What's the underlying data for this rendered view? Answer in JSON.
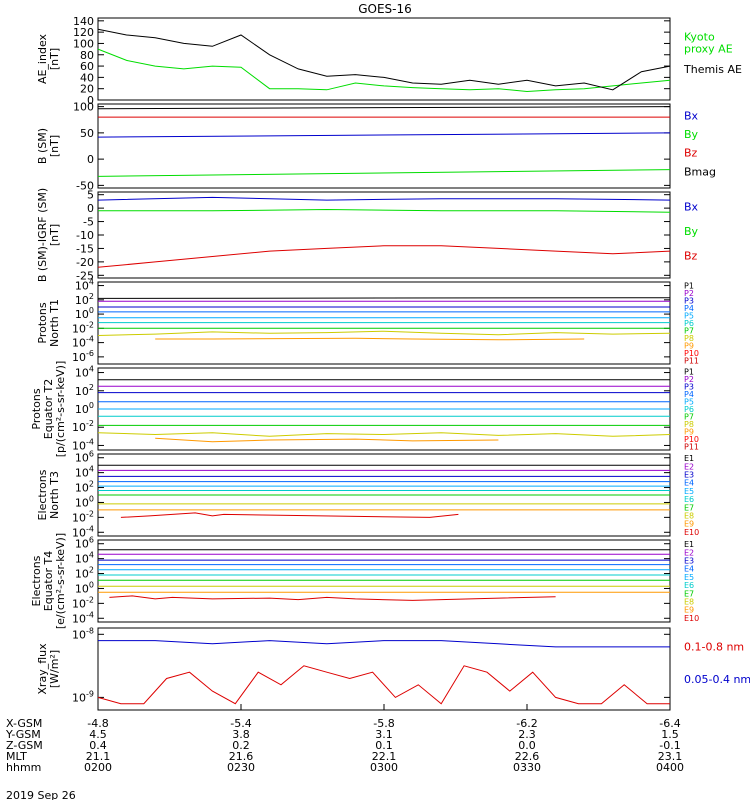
{
  "title": "GOES-16",
  "date": "2019 Sep 26",
  "chart_data": [
    {
      "type": "line",
      "ylabel": "AE_index\n[nT]",
      "yticks": [
        "140",
        "120",
        "100",
        "80",
        "60",
        "40",
        "20",
        "0"
      ],
      "ylim": [
        0,
        145
      ],
      "series": [
        {
          "name": "Kyoto\nproxy AE",
          "color": "#00dd00",
          "x": [
            0,
            0.05,
            0.1,
            0.15,
            0.2,
            0.25,
            0.3,
            0.35,
            0.4,
            0.45,
            0.5,
            0.55,
            0.6,
            0.65,
            0.7,
            0.75,
            0.8,
            0.85,
            0.9,
            0.95,
            1
          ],
          "values": [
            90,
            70,
            60,
            55,
            60,
            58,
            20,
            20,
            18,
            30,
            25,
            22,
            20,
            18,
            20,
            15,
            18,
            20,
            25,
            30,
            35
          ]
        },
        {
          "name": "Themis AE",
          "color": "#000000",
          "x": [
            0,
            0.05,
            0.1,
            0.15,
            0.2,
            0.25,
            0.3,
            0.35,
            0.4,
            0.45,
            0.5,
            0.55,
            0.6,
            0.65,
            0.7,
            0.75,
            0.8,
            0.85,
            0.9,
            0.95,
            1
          ],
          "values": [
            125,
            115,
            110,
            100,
            95,
            115,
            80,
            55,
            42,
            45,
            40,
            30,
            28,
            35,
            28,
            35,
            25,
            30,
            18,
            50,
            60
          ]
        }
      ]
    },
    {
      "type": "line",
      "ylabel": "B (SM)\n[nT]",
      "yticks": [
        "100",
        "50",
        "0",
        "-50"
      ],
      "ylim": [
        -55,
        105
      ],
      "series": [
        {
          "name": "Bx",
          "color": "#0000cc",
          "x": [
            0,
            1
          ],
          "values": [
            42,
            50
          ]
        },
        {
          "name": "By",
          "color": "#00dd00",
          "x": [
            0,
            1
          ],
          "values": [
            -33,
            -20
          ]
        },
        {
          "name": "Bz",
          "color": "#dd0000",
          "x": [
            0,
            1
          ],
          "values": [
            80,
            80
          ]
        },
        {
          "name": "Bmag",
          "color": "#000000",
          "x": [
            0,
            1
          ],
          "values": [
            96,
            100
          ]
        }
      ]
    },
    {
      "type": "line",
      "ylabel": "B (SM)-IGRF (SM)\n[nT]",
      "yticks": [
        "5",
        "0",
        "-5",
        "-10",
        "-15",
        "-20",
        "-25"
      ],
      "ylim": [
        -26,
        6
      ],
      "series": [
        {
          "name": "Bx",
          "color": "#0000cc",
          "x": [
            0,
            0.2,
            0.4,
            0.6,
            0.8,
            1
          ],
          "values": [
            3,
            4,
            3,
            3.5,
            3.5,
            3
          ]
        },
        {
          "name": "By",
          "color": "#00dd00",
          "x": [
            0,
            0.2,
            0.4,
            0.6,
            0.8,
            1
          ],
          "values": [
            -1,
            -1,
            -0.5,
            -1,
            -1,
            -1.5
          ]
        },
        {
          "name": "Bz",
          "color": "#dd0000",
          "x": [
            0,
            0.1,
            0.2,
            0.3,
            0.4,
            0.5,
            0.6,
            0.7,
            0.8,
            0.9,
            1
          ],
          "values": [
            -22,
            -20,
            -18,
            -16,
            -15,
            -14,
            -14,
            -15,
            -16,
            -17,
            -16
          ]
        }
      ]
    },
    {
      "type": "line",
      "ylabel": "Protons\nNorth T1",
      "yticks": [
        "10^4",
        "10^2",
        "10^0",
        "10^-2",
        "10^-4",
        "10^-6"
      ],
      "ylog": true,
      "ylim": [
        -7,
        4.5
      ],
      "series": [
        {
          "name": "P1",
          "color": "#000000",
          "x": [
            0,
            1
          ],
          "values": [
            2.2,
            2.3
          ]
        },
        {
          "name": "P2",
          "color": "#9900cc",
          "x": [
            0,
            1
          ],
          "values": [
            1.8,
            1.8
          ]
        },
        {
          "name": "P3",
          "color": "#0000cc",
          "x": [
            0,
            1
          ],
          "values": [
            1.0,
            1.0
          ]
        },
        {
          "name": "P4",
          "color": "#0066ff",
          "x": [
            0,
            1
          ],
          "values": [
            0.3,
            0.3
          ]
        },
        {
          "name": "P5",
          "color": "#00aaff",
          "x": [
            0,
            1
          ],
          "values": [
            -0.5,
            -0.5
          ]
        },
        {
          "name": "P6",
          "color": "#00cccc",
          "x": [
            0,
            1
          ],
          "values": [
            -1.2,
            -1.2
          ]
        },
        {
          "name": "P7",
          "color": "#00cc00",
          "x": [
            0,
            1
          ],
          "values": [
            -2.0,
            -2.0
          ]
        },
        {
          "name": "P8",
          "color": "#cccc00",
          "x": [
            0,
            0.1,
            0.2,
            0.3,
            0.4,
            0.5,
            0.6,
            0.7,
            0.8,
            0.9,
            1
          ],
          "values": [
            -3,
            -2.8,
            -2.5,
            -2.7,
            -2.6,
            -2.4,
            -2.7,
            -2.9,
            -2.6,
            -2.8,
            -2.7
          ]
        },
        {
          "name": "P9",
          "color": "#ff9900",
          "x": [
            0.1,
            0.2,
            0.45,
            0.55,
            0.7,
            0.85
          ],
          "values": [
            -3.5,
            -3.5,
            -3.4,
            -3.5,
            -3.6,
            -3.5
          ]
        },
        {
          "name": "P10",
          "color": "#ff0000",
          "x": [],
          "values": []
        },
        {
          "name": "P11",
          "color": "#cc0000",
          "x": [],
          "values": []
        }
      ]
    },
    {
      "type": "line",
      "ylabel": "Protons\nEquator T2\n[p/(cm²-s-sr-keV)]",
      "yticks": [
        "10^4",
        "10^2",
        "10^0",
        "10^-2",
        "10^-4"
      ],
      "ylog": true,
      "ylim": [
        -4.5,
        4.5
      ],
      "series": [
        {
          "name": "P1",
          "color": "#000000",
          "x": [
            0,
            1
          ],
          "values": [
            3.2,
            3.2
          ]
        },
        {
          "name": "P2",
          "color": "#9900cc",
          "x": [
            0,
            1
          ],
          "values": [
            2.5,
            2.5
          ]
        },
        {
          "name": "P3",
          "color": "#0000cc",
          "x": [
            0,
            1
          ],
          "values": [
            1.8,
            1.8
          ]
        },
        {
          "name": "P4",
          "color": "#0066ff",
          "x": [
            0,
            1
          ],
          "values": [
            0.8,
            0.8
          ]
        },
        {
          "name": "P5",
          "color": "#00aaff",
          "x": [
            0,
            1
          ],
          "values": [
            0.0,
            0.0
          ]
        },
        {
          "name": "P6",
          "color": "#00cccc",
          "x": [
            0,
            1
          ],
          "values": [
            -0.8,
            -0.8
          ]
        },
        {
          "name": "P7",
          "color": "#00cc00",
          "x": [
            0,
            1
          ],
          "values": [
            -1.8,
            -1.8
          ]
        },
        {
          "name": "P8",
          "color": "#cccc00",
          "x": [
            0,
            0.1,
            0.2,
            0.3,
            0.4,
            0.5,
            0.6,
            0.7,
            0.8,
            0.9,
            1
          ],
          "values": [
            -2.6,
            -2.8,
            -2.6,
            -3.0,
            -2.7,
            -2.8,
            -2.6,
            -2.9,
            -2.7,
            -3.0,
            -2.8
          ]
        },
        {
          "name": "P9",
          "color": "#ff9900",
          "x": [
            0.1,
            0.2,
            0.3,
            0.45,
            0.55,
            0.7
          ],
          "values": [
            -3.2,
            -3.6,
            -3.4,
            -3.3,
            -3.5,
            -3.4
          ]
        },
        {
          "name": "P10",
          "color": "#ff0000",
          "x": [],
          "values": []
        },
        {
          "name": "P11",
          "color": "#cc0000",
          "x": [],
          "values": []
        }
      ]
    },
    {
      "type": "line",
      "ylabel": "Electrons\nNorth T3",
      "yticks": [
        "10^6",
        "10^4",
        "10^2",
        "10^0",
        "10^-2",
        "10^-4"
      ],
      "ylog": true,
      "ylim": [
        -4.5,
        6.5
      ],
      "series": [
        {
          "name": "E1",
          "color": "#000000",
          "x": [
            0,
            1
          ],
          "values": [
            5.0,
            5.0
          ]
        },
        {
          "name": "E2",
          "color": "#9900cc",
          "x": [
            0,
            1
          ],
          "values": [
            4.3,
            4.3
          ]
        },
        {
          "name": "E3",
          "color": "#0000cc",
          "x": [
            0,
            1
          ],
          "values": [
            3.5,
            3.5
          ]
        },
        {
          "name": "E4",
          "color": "#0066ff",
          "x": [
            0,
            1
          ],
          "values": [
            2.8,
            2.8
          ]
        },
        {
          "name": "E5",
          "color": "#00aaff",
          "x": [
            0,
            1
          ],
          "values": [
            2.2,
            2.2
          ]
        },
        {
          "name": "E6",
          "color": "#00cccc",
          "x": [
            0,
            1
          ],
          "values": [
            1.6,
            1.6
          ]
        },
        {
          "name": "E7",
          "color": "#00cc00",
          "x": [
            0,
            1
          ],
          "values": [
            1.0,
            1.0
          ]
        },
        {
          "name": "E8",
          "color": "#cccc00",
          "x": [
            0,
            1
          ],
          "values": [
            -0.2,
            -0.2
          ]
        },
        {
          "name": "E9",
          "color": "#ff9900",
          "x": [
            0,
            1
          ],
          "values": [
            -1.0,
            -1.0
          ]
        },
        {
          "name": "E10",
          "color": "#dd0000",
          "x": [
            0.04,
            0.09,
            0.17,
            0.2,
            0.22,
            0.58,
            0.63
          ],
          "values": [
            -2.0,
            -1.8,
            -1.4,
            -1.8,
            -1.6,
            -2.0,
            -1.6
          ]
        }
      ]
    },
    {
      "type": "line",
      "ylabel": "Electrons\nEquator T4\n[e/(cm²-s-sr-keV)]",
      "yticks": [
        "10^6",
        "10^4",
        "10^2",
        "10^0",
        "10^-2",
        "10^-4"
      ],
      "ylog": true,
      "ylim": [
        -4.5,
        6.5
      ],
      "series": [
        {
          "name": "E1",
          "color": "#000000",
          "x": [
            0,
            1
          ],
          "values": [
            5.2,
            5.2
          ]
        },
        {
          "name": "E2",
          "color": "#9900cc",
          "x": [
            0,
            1
          ],
          "values": [
            4.6,
            4.6
          ]
        },
        {
          "name": "E3",
          "color": "#0000cc",
          "x": [
            0,
            1
          ],
          "values": [
            3.8,
            3.8
          ]
        },
        {
          "name": "E4",
          "color": "#0066ff",
          "x": [
            0,
            1
          ],
          "values": [
            3.2,
            3.2
          ]
        },
        {
          "name": "E5",
          "color": "#00aaff",
          "x": [
            0,
            1
          ],
          "values": [
            2.5,
            2.5
          ]
        },
        {
          "name": "E6",
          "color": "#00cccc",
          "x": [
            0,
            1
          ],
          "values": [
            1.8,
            1.8
          ]
        },
        {
          "name": "E7",
          "color": "#00cc00",
          "x": [
            0,
            1
          ],
          "values": [
            1.1,
            1.1
          ]
        },
        {
          "name": "E8",
          "color": "#cccc00",
          "x": [
            0,
            1
          ],
          "values": [
            0.3,
            0.3
          ]
        },
        {
          "name": "E9",
          "color": "#ff9900",
          "x": [
            0,
            1
          ],
          "values": [
            -0.5,
            -0.5
          ]
        },
        {
          "name": "E10",
          "color": "#dd0000",
          "x": [
            0.02,
            0.06,
            0.1,
            0.13,
            0.2,
            0.3,
            0.35,
            0.4,
            0.45,
            0.55,
            0.8
          ],
          "values": [
            -1.2,
            -1.0,
            -1.4,
            -1.2,
            -1.4,
            -1.3,
            -1.5,
            -1.2,
            -1.4,
            -1.6,
            -1.1
          ]
        }
      ]
    },
    {
      "type": "line",
      "ylabel": "Xray_flux\n[W/m²]",
      "yticks": [
        "10^-8",
        "10^-9"
      ],
      "ylog": true,
      "ylim": [
        -9.2,
        -7.9
      ],
      "series": [
        {
          "name": "0.1-0.8 nm",
          "color": "#dd0000",
          "x": [
            0,
            0.04,
            0.08,
            0.12,
            0.16,
            0.2,
            0.24,
            0.28,
            0.32,
            0.36,
            0.4,
            0.44,
            0.48,
            0.52,
            0.56,
            0.6,
            0.64,
            0.68,
            0.72,
            0.76,
            0.8,
            0.84,
            0.88,
            0.92,
            0.96,
            1
          ],
          "values": [
            -9.0,
            -9.1,
            -9.1,
            -8.7,
            -8.6,
            -8.9,
            -9.1,
            -8.6,
            -8.8,
            -8.5,
            -8.6,
            -8.7,
            -8.6,
            -9.0,
            -8.8,
            -9.1,
            -8.5,
            -8.6,
            -8.9,
            -8.6,
            -9.0,
            -9.1,
            -9.1,
            -8.8,
            -9.1,
            -9.1
          ]
        },
        {
          "name": "0.05-0.4 nm",
          "color": "#0000cc",
          "x": [
            0,
            0.1,
            0.2,
            0.3,
            0.4,
            0.5,
            0.6,
            0.7,
            0.8,
            0.9,
            1
          ],
          "values": [
            -8.1,
            -8.1,
            -8.15,
            -8.1,
            -8.15,
            -8.1,
            -8.1,
            -8.15,
            -8.2,
            -8.2,
            -8.2
          ]
        }
      ]
    }
  ],
  "xaxis": {
    "row_labels": [
      "X-GSM",
      "Y-GSM",
      "Z-GSM",
      "MLT",
      "hhmm"
    ],
    "ticks": [
      [
        "-4.8",
        "4.5",
        "0.4",
        "21.1",
        "0200"
      ],
      [
        "-5.4",
        "3.8",
        "0.2",
        "21.6",
        "0230"
      ],
      [
        "-5.8",
        "3.1",
        "0.1",
        "22.1",
        "0300"
      ],
      [
        "-6.2",
        "2.3",
        "0.0",
        "22.6",
        "0330"
      ],
      [
        "-6.4",
        "1.5",
        "-0.1",
        "23.1",
        "0400"
      ]
    ]
  }
}
